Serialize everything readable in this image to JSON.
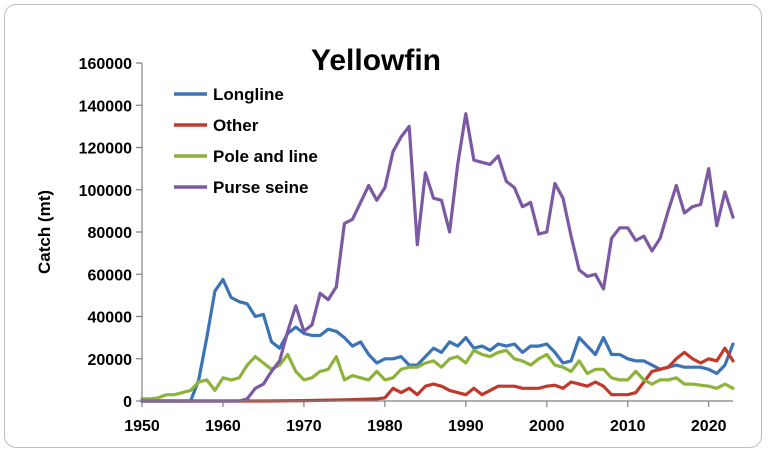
{
  "chart_data": {
    "type": "line",
    "title": "Yellowfin",
    "xlabel": "",
    "ylabel": "Catch (mt)",
    "xlim": [
      1950,
      2023
    ],
    "ylim": [
      0,
      160000
    ],
    "xticks": [
      1950,
      1960,
      1970,
      1980,
      1990,
      2000,
      2010,
      2020
    ],
    "yticks": [
      0,
      20000,
      40000,
      60000,
      80000,
      100000,
      120000,
      140000,
      160000
    ],
    "grid": false,
    "legend": "top-left",
    "series": [
      {
        "name": "Longline",
        "color": "#3b73b4",
        "x": [
          1950,
          1951,
          1952,
          1953,
          1954,
          1955,
          1956,
          1957,
          1958,
          1959,
          1960,
          1961,
          1962,
          1963,
          1964,
          1965,
          1966,
          1967,
          1968,
          1969,
          1970,
          1971,
          1972,
          1973,
          1974,
          1975,
          1976,
          1977,
          1978,
          1979,
          1980,
          1981,
          1982,
          1983,
          1984,
          1985,
          1986,
          1987,
          1988,
          1989,
          1990,
          1991,
          1992,
          1993,
          1994,
          1995,
          1996,
          1997,
          1998,
          1999,
          2000,
          2001,
          2002,
          2003,
          2004,
          2005,
          2006,
          2007,
          2008,
          2009,
          2010,
          2011,
          2012,
          2013,
          2014,
          2015,
          2016,
          2017,
          2018,
          2019,
          2020,
          2021,
          2022,
          2023
        ],
        "values": [
          0,
          0,
          0,
          0,
          0,
          0,
          0,
          10000,
          30000,
          52000,
          57500,
          49000,
          47000,
          46000,
          40000,
          41000,
          28000,
          25000,
          32000,
          35000,
          32000,
          31000,
          31000,
          34000,
          33000,
          30000,
          26000,
          28000,
          22000,
          18000,
          20000,
          20000,
          21000,
          17000,
          17000,
          21000,
          25000,
          23000,
          28000,
          26000,
          30000,
          25000,
          26000,
          24000,
          27000,
          26000,
          27000,
          23000,
          26000,
          26000,
          27000,
          23000,
          18000,
          19000,
          30000,
          26000,
          22000,
          30000,
          22000,
          22000,
          20000,
          19000,
          19000,
          17000,
          15000,
          16000,
          17000,
          16000,
          16000,
          16000,
          15000,
          13000,
          17000,
          27000
        ]
      },
      {
        "name": "Other",
        "color": "#c0392b",
        "x": [
          1950,
          1955,
          1960,
          1965,
          1970,
          1975,
          1979,
          1980,
          1981,
          1982,
          1983,
          1984,
          1985,
          1986,
          1987,
          1988,
          1989,
          1990,
          1991,
          1992,
          1993,
          1994,
          1995,
          1996,
          1997,
          1998,
          1999,
          2000,
          2001,
          2002,
          2003,
          2004,
          2005,
          2006,
          2007,
          2008,
          2009,
          2010,
          2011,
          2012,
          2013,
          2014,
          2015,
          2016,
          2017,
          2018,
          2019,
          2020,
          2021,
          2022,
          2023
        ],
        "values": [
          0,
          0,
          0,
          0,
          200,
          500,
          1000,
          1500,
          6000,
          4000,
          6000,
          3000,
          7000,
          8000,
          7000,
          5000,
          4000,
          3000,
          6000,
          3000,
          5000,
          7000,
          7000,
          7000,
          6000,
          6000,
          6000,
          7000,
          7500,
          6000,
          9000,
          8000,
          7000,
          9000,
          7000,
          3000,
          3000,
          3000,
          4000,
          9000,
          14000,
          15000,
          16000,
          20000,
          23000,
          20000,
          18000,
          20000,
          19000,
          25000,
          19000
        ]
      },
      {
        "name": "Pole and line",
        "color": "#8db33c",
        "x": [
          1950,
          1951,
          1952,
          1953,
          1954,
          1955,
          1956,
          1957,
          1958,
          1959,
          1960,
          1961,
          1962,
          1963,
          1964,
          1965,
          1966,
          1967,
          1968,
          1969,
          1970,
          1971,
          1972,
          1973,
          1974,
          1975,
          1976,
          1977,
          1978,
          1979,
          1980,
          1981,
          1982,
          1983,
          1984,
          1985,
          1986,
          1987,
          1988,
          1989,
          1990,
          1991,
          1992,
          1993,
          1994,
          1995,
          1996,
          1997,
          1998,
          1999,
          2000,
          2001,
          2002,
          2003,
          2004,
          2005,
          2006,
          2007,
          2008,
          2009,
          2010,
          2011,
          2012,
          2013,
          2014,
          2015,
          2016,
          2017,
          2018,
          2019,
          2020,
          2021,
          2022,
          2023
        ],
        "values": [
          1000,
          1000,
          1500,
          3000,
          3000,
          4000,
          5000,
          9000,
          10000,
          5000,
          11000,
          10000,
          11000,
          17000,
          21000,
          18000,
          15000,
          17000,
          22000,
          14000,
          10000,
          11000,
          14000,
          15000,
          21000,
          10000,
          12000,
          11000,
          10000,
          14000,
          10000,
          11000,
          15000,
          16000,
          16000,
          18000,
          19000,
          16000,
          20000,
          21000,
          18000,
          24000,
          22000,
          21000,
          23000,
          24000,
          20000,
          19000,
          17000,
          20000,
          22000,
          17000,
          16000,
          14000,
          19000,
          13000,
          15000,
          15000,
          11000,
          10000,
          10000,
          14000,
          10000,
          8000,
          10000,
          10000,
          11000,
          8000,
          8000,
          7500,
          7000,
          6000,
          8000,
          6000
        ]
      },
      {
        "name": "Purse seine",
        "color": "#7c59a3",
        "x": [
          1950,
          1955,
          1962,
          1963,
          1964,
          1965,
          1966,
          1967,
          1968,
          1969,
          1970,
          1971,
          1972,
          1973,
          1974,
          1975,
          1976,
          1977,
          1978,
          1979,
          1980,
          1981,
          1982,
          1983,
          1984,
          1985,
          1986,
          1987,
          1988,
          1989,
          1990,
          1991,
          1992,
          1993,
          1994,
          1995,
          1996,
          1997,
          1998,
          1999,
          2000,
          2001,
          2002,
          2003,
          2004,
          2005,
          2006,
          2007,
          2008,
          2009,
          2010,
          2011,
          2012,
          2013,
          2014,
          2015,
          2016,
          2017,
          2018,
          2019,
          2020,
          2021,
          2022,
          2023
        ],
        "values": [
          0,
          0,
          0,
          1000,
          6000,
          8000,
          14000,
          19000,
          33000,
          45000,
          33000,
          36000,
          51000,
          48000,
          54000,
          84000,
          86000,
          94000,
          102000,
          95000,
          101000,
          118000,
          125000,
          130000,
          74000,
          108000,
          96000,
          95000,
          80000,
          112000,
          136000,
          114000,
          113000,
          112000,
          116000,
          104000,
          101000,
          92000,
          94000,
          79000,
          80000,
          103000,
          96000,
          78000,
          62000,
          59000,
          60000,
          53000,
          77000,
          82000,
          82000,
          76000,
          78000,
          71000,
          77000,
          90000,
          102000,
          89000,
          92000,
          93000,
          110000,
          83000,
          99000,
          87000
        ]
      }
    ]
  }
}
